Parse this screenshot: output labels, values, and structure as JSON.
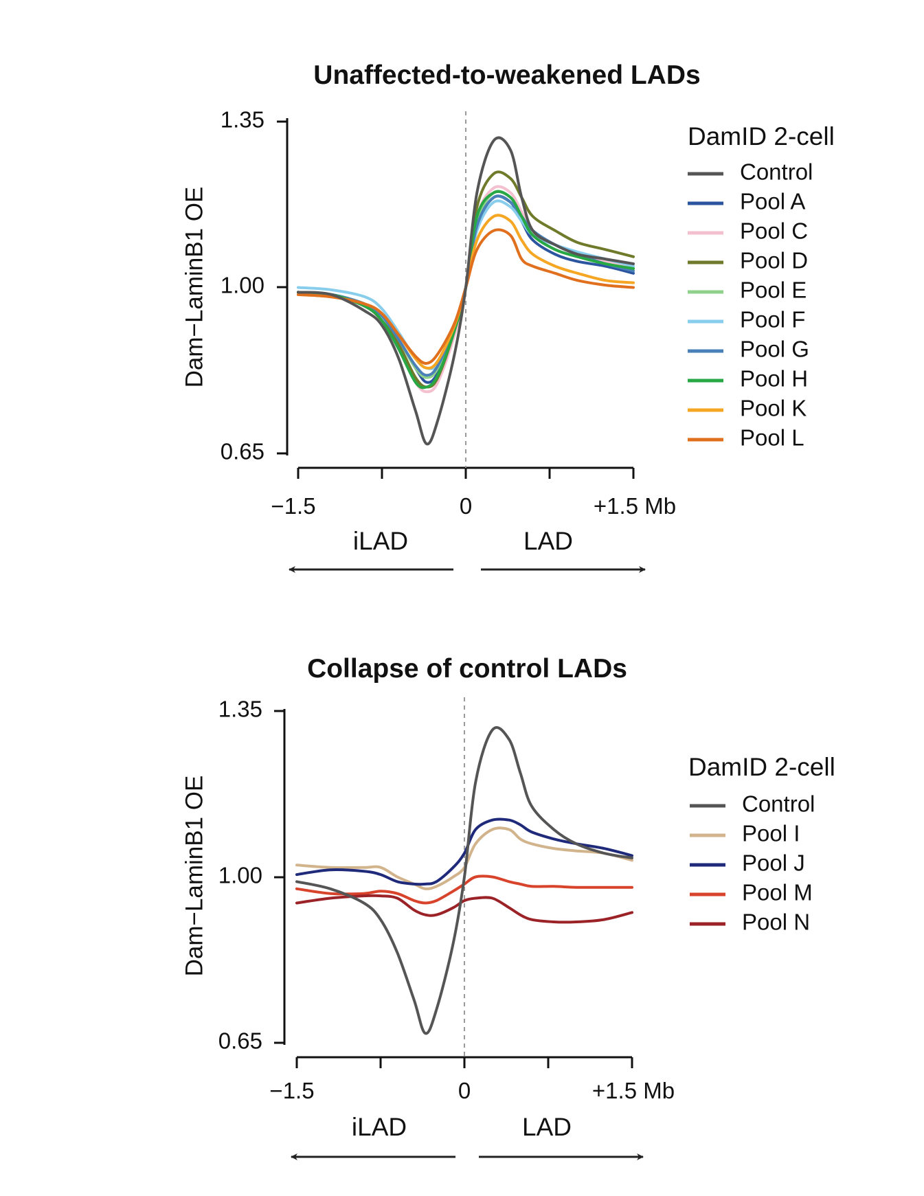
{
  "chart_data": [
    {
      "type": "line",
      "title": "Unaffected-to-weakened LADs",
      "xlabel": "",
      "ylabel": "Dam−LaminB1 OE",
      "xlim": [
        -1.5,
        1.5
      ],
      "ylim": [
        0.65,
        1.35
      ],
      "yticks": [
        0.65,
        1.0,
        1.35
      ],
      "ytick_labels": [
        "0.65",
        "1.00",
        "1.35"
      ],
      "xticks": [
        -1.5,
        -0.75,
        0,
        0.75,
        1.5
      ],
      "xtick_labels": [
        "−1.5",
        "",
        "0",
        "",
        "+1.5 Mb"
      ],
      "region_labels": {
        "left": "iLAD",
        "right": "LAD"
      },
      "legend_title": "DamID 2-cell",
      "legend_position": "right",
      "x": [
        -1.5,
        -1.2,
        -0.9,
        -0.75,
        -0.6,
        -0.45,
        -0.35,
        -0.25,
        -0.1,
        0.0,
        0.1,
        0.25,
        0.4,
        0.5,
        0.6,
        0.8,
        1.0,
        1.25,
        1.5
      ],
      "series": [
        {
          "name": "Control",
          "color": "#555555",
          "values": [
            0.99,
            0.985,
            0.95,
            0.92,
            0.85,
            0.74,
            0.67,
            0.72,
            0.86,
            1.0,
            1.2,
            1.31,
            1.29,
            1.19,
            1.12,
            1.09,
            1.07,
            1.06,
            1.05
          ]
        },
        {
          "name": "Pool A",
          "color": "#2c55a0",
          "values": [
            0.99,
            0.985,
            0.965,
            0.94,
            0.89,
            0.83,
            0.8,
            0.82,
            0.91,
            1.0,
            1.13,
            1.19,
            1.18,
            1.14,
            1.1,
            1.07,
            1.055,
            1.045,
            1.03
          ]
        },
        {
          "name": "Pool C",
          "color": "#f4bfce",
          "values": [
            0.99,
            0.985,
            0.96,
            0.93,
            0.87,
            0.8,
            0.78,
            0.8,
            0.9,
            1.0,
            1.15,
            1.21,
            1.2,
            1.16,
            1.12,
            1.09,
            1.07,
            1.055,
            1.04
          ]
        },
        {
          "name": "Pool D",
          "color": "#6f7a2a",
          "values": [
            0.99,
            0.985,
            0.96,
            0.93,
            0.88,
            0.81,
            0.79,
            0.81,
            0.91,
            1.0,
            1.17,
            1.24,
            1.23,
            1.19,
            1.15,
            1.12,
            1.095,
            1.08,
            1.065
          ]
        },
        {
          "name": "Pool E",
          "color": "#8fd18a",
          "values": [
            0.99,
            0.985,
            0.965,
            0.94,
            0.89,
            0.83,
            0.81,
            0.83,
            0.92,
            1.0,
            1.14,
            1.2,
            1.19,
            1.15,
            1.11,
            1.08,
            1.065,
            1.05,
            1.04
          ]
        },
        {
          "name": "Pool F",
          "color": "#88cdec",
          "values": [
            1.0,
            0.995,
            0.98,
            0.955,
            0.905,
            0.85,
            0.83,
            0.84,
            0.92,
            1.0,
            1.12,
            1.18,
            1.17,
            1.14,
            1.11,
            1.09,
            1.075,
            1.06,
            1.045
          ]
        },
        {
          "name": "Pool G",
          "color": "#4a80b8",
          "values": [
            0.99,
            0.985,
            0.965,
            0.94,
            0.89,
            0.835,
            0.815,
            0.835,
            0.92,
            1.0,
            1.13,
            1.19,
            1.18,
            1.15,
            1.12,
            1.09,
            1.07,
            1.05,
            1.035
          ]
        },
        {
          "name": "Pool H",
          "color": "#27a845",
          "values": [
            0.99,
            0.985,
            0.96,
            0.93,
            0.87,
            0.8,
            0.79,
            0.815,
            0.91,
            1.0,
            1.15,
            1.2,
            1.19,
            1.15,
            1.11,
            1.08,
            1.065,
            1.05,
            1.04
          ]
        },
        {
          "name": "Pool K",
          "color": "#f5a623",
          "values": [
            0.985,
            0.98,
            0.965,
            0.945,
            0.9,
            0.85,
            0.83,
            0.845,
            0.92,
            1.0,
            1.1,
            1.15,
            1.14,
            1.1,
            1.07,
            1.045,
            1.03,
            1.015,
            1.01
          ]
        },
        {
          "name": "Pool L",
          "color": "#e0701e",
          "values": [
            0.985,
            0.98,
            0.965,
            0.945,
            0.9,
            0.855,
            0.84,
            0.86,
            0.925,
            1.0,
            1.08,
            1.12,
            1.11,
            1.06,
            1.045,
            1.03,
            1.015,
            1.005,
            1.0
          ]
        }
      ]
    },
    {
      "type": "line",
      "title": "Collapse of control LADs",
      "xlabel": "",
      "ylabel": "Dam−LaminB1 OE",
      "xlim": [
        -1.5,
        1.5
      ],
      "ylim": [
        0.65,
        1.35
      ],
      "yticks": [
        0.65,
        1.0,
        1.35
      ],
      "ytick_labels": [
        "0.65",
        "1.00",
        "1.35"
      ],
      "xticks": [
        -1.5,
        -0.75,
        0,
        0.75,
        1.5
      ],
      "xtick_labels": [
        "−1.5",
        "",
        "0",
        "",
        "+1.5 Mb"
      ],
      "region_labels": {
        "left": "iLAD",
        "right": "LAD"
      },
      "legend_title": "DamID 2-cell",
      "legend_position": "right",
      "x": [
        -1.5,
        -1.2,
        -0.9,
        -0.75,
        -0.6,
        -0.45,
        -0.35,
        -0.25,
        -0.1,
        0.0,
        0.1,
        0.25,
        0.4,
        0.5,
        0.6,
        0.8,
        1.0,
        1.25,
        1.5
      ],
      "series": [
        {
          "name": "Control",
          "color": "#555555",
          "values": [
            0.99,
            0.975,
            0.945,
            0.91,
            0.84,
            0.74,
            0.67,
            0.72,
            0.86,
            1.0,
            1.2,
            1.31,
            1.29,
            1.22,
            1.15,
            1.1,
            1.07,
            1.05,
            1.04
          ]
        },
        {
          "name": "Pool I",
          "color": "#d2b48c",
          "values": [
            1.025,
            1.02,
            1.02,
            1.02,
            1.0,
            0.985,
            0.975,
            0.98,
            1.0,
            1.02,
            1.07,
            1.1,
            1.1,
            1.08,
            1.07,
            1.06,
            1.055,
            1.05,
            1.035
          ]
        },
        {
          "name": "Pool J",
          "color": "#1f2a7a",
          "values": [
            1.005,
            1.015,
            1.012,
            1.005,
            0.99,
            0.985,
            0.985,
            0.99,
            1.02,
            1.05,
            1.1,
            1.12,
            1.12,
            1.11,
            1.095,
            1.08,
            1.07,
            1.06,
            1.045
          ]
        },
        {
          "name": "Pool M",
          "color": "#d8432b",
          "values": [
            0.975,
            0.965,
            0.965,
            0.97,
            0.965,
            0.95,
            0.945,
            0.95,
            0.97,
            0.985,
            1.0,
            1.0,
            0.99,
            0.985,
            0.98,
            0.98,
            0.978,
            0.978,
            0.978
          ]
        },
        {
          "name": "Pool N",
          "color": "#9b2226",
          "values": [
            0.945,
            0.955,
            0.96,
            0.96,
            0.955,
            0.93,
            0.92,
            0.92,
            0.935,
            0.95,
            0.955,
            0.955,
            0.935,
            0.92,
            0.91,
            0.905,
            0.905,
            0.91,
            0.925
          ]
        }
      ]
    }
  ]
}
